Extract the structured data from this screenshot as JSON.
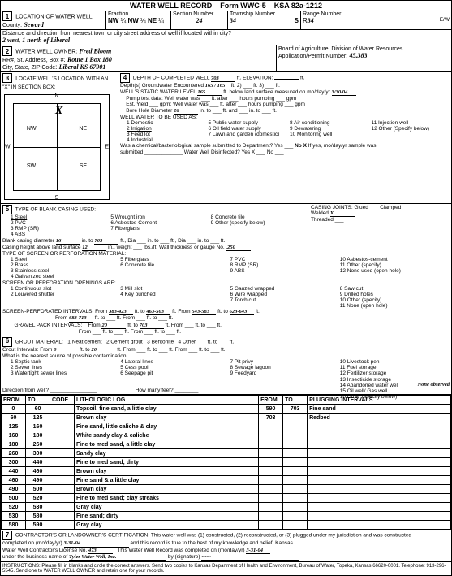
{
  "header": {
    "title": "WATER WELL RECORD",
    "form": "Form WWC-5",
    "ksa": "KSA 82a-1212"
  },
  "location": {
    "county_label": "LOCATION OF WATER WELL:",
    "county": "Seward",
    "fraction": "Fraction",
    "frac1a": "NW",
    "frac1b": "¼",
    "frac2a": "NW",
    "frac2b": "¼",
    "frac3a": "NE",
    "frac3b": "¼",
    "section_label": "Section Number",
    "section": "24",
    "township_label": "Township Number",
    "township": "34",
    "township_dir": "S",
    "range_label": "Range Number",
    "range": "34",
    "range_dir": "E/W",
    "distance_label": "Distance and direction from nearest town or city street address of well if located within city?",
    "distance": "2 west, 1 north of Liberal"
  },
  "owner": {
    "label": "WATER WELL OWNER:",
    "name": "Fred Bloom",
    "addr_label": "RR#, St. Address, Box #",
    "addr": "Route 1 Box 180",
    "city_label": "City, State, ZIP Code",
    "city": "Liberal KS 67901",
    "board": "Board of Agriculture, Division of Water Resources",
    "approp": "Application/Permit Number:",
    "approp_num": "45,383"
  },
  "sec3": {
    "label": "LOCATE WELL'S LOCATION WITH AN \"X\" IN SECTION BOX:",
    "N": "N",
    "S": "S",
    "E": "E",
    "W": "W",
    "NW": "NW",
    "NE": "NE",
    "SW": "SW",
    "SE": "SE"
  },
  "sec4": {
    "depth_label": "DEPTH OF COMPLETED WELL",
    "depth": "703",
    "elev_label": "ft. ELEVATION:",
    "layers_label": "Depth(s) Groundwater Encountered",
    "layers": "165 / 165",
    "static_label": "WELL'S STATIC WATER LEVEL",
    "static": "165",
    "static_unit": "ft. below land surface measured on mo/day/yr",
    "static_date": "3/30/04",
    "pump_label": "Pump test data: Well water was",
    "after": "ft. after",
    "hours": "hours pumping",
    "gpm": "gpm",
    "est_label": "Est. Yield",
    "est_gpm": "gpm: Well water was",
    "bore_label": "Bore Hole Diameter",
    "bore": "26",
    "bore_in": "in. to",
    "use_label": "WELL WATER TO BE USED AS:",
    "uses": [
      "1 Domestic",
      "2 Irrigation",
      "3 Feed lot",
      "4 Industrial",
      "5 Public water supply",
      "6 Oil field water supply",
      "7 Lawn and garden (domestic)",
      "8 Air conditioning",
      "9 Dewatering",
      "10 Monitoring well",
      "11 Injection well",
      "12 Other (Specify below)"
    ],
    "chem_label": "Was a chemical/bacteriological sample submitted to Department? Yes",
    "no_x": "No X",
    "if_yes": "If yes, mo/day/yr sample was",
    "submitted": "submitted",
    "disinfect": "Water Well Disinfected? Yes X",
    "disinfect_no": "No"
  },
  "sec5": {
    "label": "TYPE OF BLANK CASING USED:",
    "types": [
      "1 Steel",
      "2 PVC",
      "3 RMP (SR)",
      "4 ABS",
      "5 Wrought iron",
      "6 Asbestos-Cement",
      "7 Fiberglass",
      "8 Concrete tile",
      "9 Other (specify below)"
    ],
    "joints_label": "CASING JOINTS:",
    "joints": [
      "Glued",
      "Clamped",
      "Welded",
      "Threaded"
    ],
    "joint_x": "X",
    "bc_dia_label": "Blank casing diameter",
    "bc_dia": "16",
    "bc_to": "703",
    "csg_label": "Casing height above land surface",
    "csg_h": "12",
    "csg_w": "in., weight",
    "csg_wall": "lbs./ft. Wall thickness or gauge No.",
    "csg_gauge": ".250",
    "screen_label": "TYPE OF SCREEN OR PERFORATION MATERIAL:",
    "screen_mats": [
      "1 Steel",
      "2 Brass",
      "3 Stainless steel",
      "4 Galvanized steel",
      "5 Fiberglass",
      "6 Concrete tile",
      "7 PVC",
      "8 RMP (SR)",
      "9 ABS",
      "10 Asbestos-cement",
      "11 Other (specify)",
      "12 None used (open hole)"
    ],
    "open_label": "SCREEN OR PERFORATION OPENINGS ARE:",
    "opens": [
      "1 Continuous slot",
      "2 Louvered shutter",
      "3 Mill slot",
      "4 Key punched",
      "5 Gauzed wrapped",
      "6 Wire wrapped",
      "7 Torch cut",
      "8 Saw cut",
      "9 Drilled holes",
      "10 Other (specify)",
      "11 None (open hole)"
    ],
    "perf_label": "SCREEN-PERFORATED INTERVALS: From",
    "perf1_from": "383-423",
    "perf1_to": "463-503",
    "perf2_from": "543-583",
    "perf2_to": "623-643",
    "perf3_from": "683-713",
    "gravel_label": "GRAVEL PACK INTERVALS:",
    "gravel_from": "20",
    "gravel_to": "703"
  },
  "sec6": {
    "label": "GROUT MATERIAL:",
    "mats": [
      "1 Neat cement",
      "2 Cement grout",
      "3 Bentonite",
      "4 Other"
    ],
    "grout_from": "0",
    "grout_to": "20",
    "contam_label": "What is the nearest source of possible contamination:",
    "contams": [
      "1 Septic tank",
      "2 Sewer lines",
      "3 Watertight sewer lines",
      "4 Lateral lines",
      "5 Cess pool",
      "6 Seepage pit",
      "7 Pit privy",
      "8 Sewage lagoon",
      "9 Feedyard",
      "10 Livestock pen",
      "11 Fuel storage",
      "12 Fertilizer storage",
      "13 Insecticide storage",
      "14 Abandoned water well",
      "15 Oil well/ Gas well",
      "16 Other (specify below)"
    ],
    "none": "None observed",
    "dir_label": "Direction from well?",
    "feet_label": "How many feet?"
  },
  "log": {
    "headers": [
      "FROM",
      "TO",
      "CODE",
      "LITHOLOGIC LOG",
      "FROM",
      "TO",
      "PLUGGING INTERVALS"
    ],
    "rows": [
      [
        "0",
        "60",
        "",
        "Topsoil, fine sand, a little clay",
        "590",
        "703",
        "Fine sand"
      ],
      [
        "60",
        "125",
        "",
        "Brown clay",
        "703",
        "",
        "Redbed"
      ],
      [
        "125",
        "160",
        "",
        "Fine sand, little caliche & clay",
        "",
        "",
        ""
      ],
      [
        "160",
        "180",
        "",
        "White sandy clay & caliche",
        "",
        "",
        ""
      ],
      [
        "180",
        "260",
        "",
        "Fine to med sand, a little clay",
        "",
        "",
        ""
      ],
      [
        "260",
        "300",
        "",
        "Sandy clay",
        "",
        "",
        ""
      ],
      [
        "300",
        "440",
        "",
        "Fine to med sand; dirty",
        "",
        "",
        ""
      ],
      [
        "440",
        "460",
        "",
        "Brown clay",
        "",
        "",
        ""
      ],
      [
        "460",
        "490",
        "",
        "Fine sand & a little clay",
        "",
        "",
        ""
      ],
      [
        "490",
        "500",
        "",
        "Brown clay",
        "",
        "",
        ""
      ],
      [
        "500",
        "520",
        "",
        "Fine to med sand; clay streaks",
        "",
        "",
        ""
      ],
      [
        "520",
        "530",
        "",
        "Gray clay",
        "",
        "",
        ""
      ],
      [
        "530",
        "580",
        "",
        "Fine sand; dirty",
        "",
        "",
        ""
      ],
      [
        "580",
        "590",
        "",
        "Gray clay",
        "",
        "",
        ""
      ]
    ]
  },
  "sec7": {
    "cert_label": "CONTRACTOR'S OR LANDOWNER'S CERTIFICATION: This water well was (1) constructed, (2) reconstructed, or (3) plugged under my jurisdiction and was constructed",
    "completed_label": "completed on (mo/day/yr)",
    "completed": "3-31-04",
    "record_label": "and this record is true to the best of my knowledge and belief. Kansas",
    "lic_label": "Water Well Contractor's License No.",
    "lic": "473",
    "rec_completed": "This Water Well Record was completed on (mo/day/yr)",
    "rec_date": "3-31-04",
    "business_label": "under the business name of",
    "business": "Tyler Water Well, Inc.",
    "sig_label": "by (signature)",
    "instruct": "INSTRUCTIONS: Please fill in blanks and circle the correct answers. Send two copies to Kansas Department of Health and Environment, Bureau of Water, Topeka, Kansas 66620-0001. Telephone: 913-296-5545. Send one to WATER WELL OWNER and retain one for your records."
  }
}
